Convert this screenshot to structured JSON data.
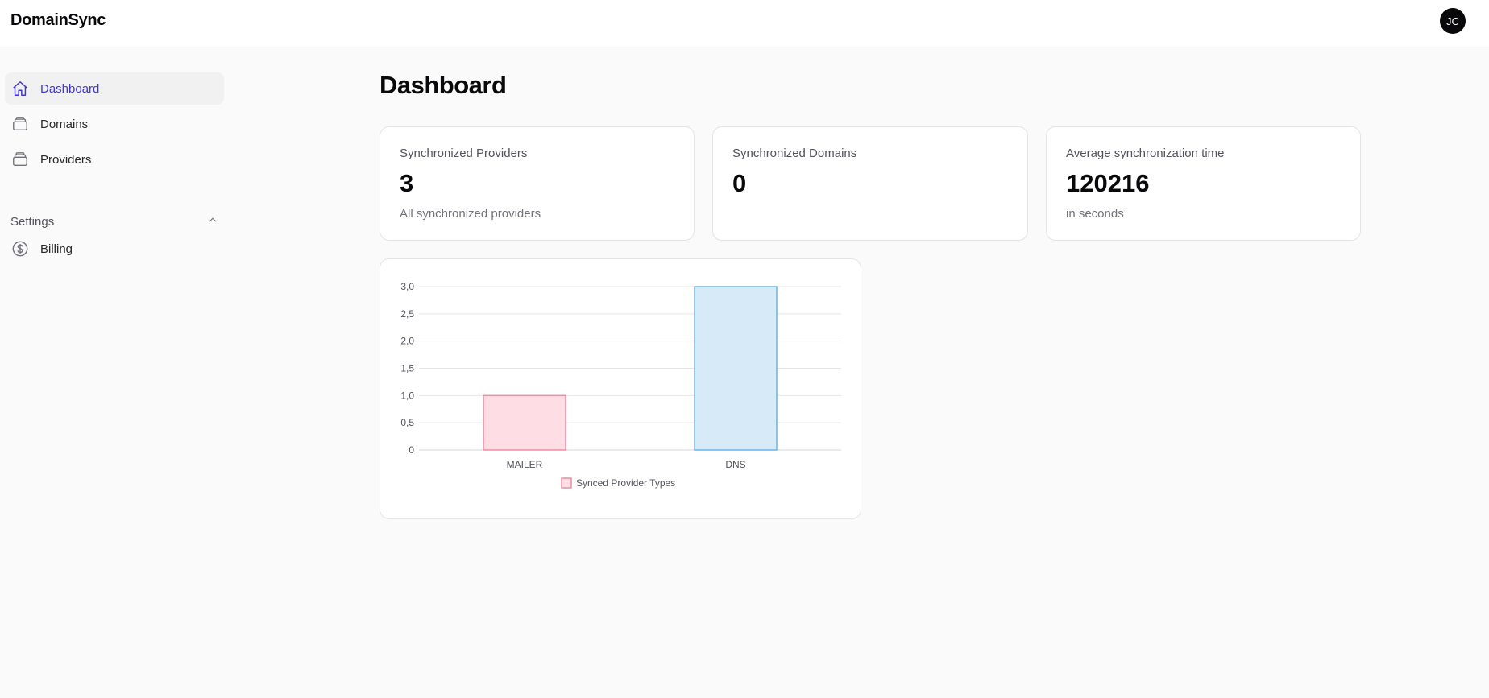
{
  "app": {
    "title": "DomainSync"
  },
  "user": {
    "initials": "JC"
  },
  "sidebar": {
    "items": [
      {
        "label": "Dashboard",
        "icon": "home-icon",
        "active": true
      },
      {
        "label": "Domains",
        "icon": "stack-icon"
      },
      {
        "label": "Providers",
        "icon": "stack-icon"
      }
    ],
    "settings": {
      "label": "Settings",
      "items": [
        {
          "label": "Billing",
          "icon": "dollar-circle-icon"
        }
      ]
    }
  },
  "page": {
    "title": "Dashboard"
  },
  "stats": [
    {
      "label": "Synchronized Providers",
      "value": "3",
      "sub": "All synchronized providers"
    },
    {
      "label": "Synchronized Domains",
      "value": "0",
      "sub": ""
    },
    {
      "label": "Average synchronization time",
      "value": "120216",
      "sub": "in seconds"
    }
  ],
  "colors": {
    "accent": "#4338ca",
    "mailer_fill": "#ffdde4",
    "mailer_stroke": "#f08ca2",
    "dns_fill": "#d6eaf8",
    "dns_stroke": "#6bb2ea"
  },
  "chart_data": {
    "type": "bar",
    "categories": [
      "MAILER",
      "DNS"
    ],
    "series": [
      {
        "name": "Synced Provider Types",
        "values": [
          1,
          3
        ]
      }
    ],
    "y_ticks": [
      "0",
      "0,5",
      "1,0",
      "1,5",
      "2,0",
      "2,5",
      "3,0"
    ],
    "ylim": [
      0,
      3
    ],
    "grid": true,
    "legend": "bottom"
  }
}
